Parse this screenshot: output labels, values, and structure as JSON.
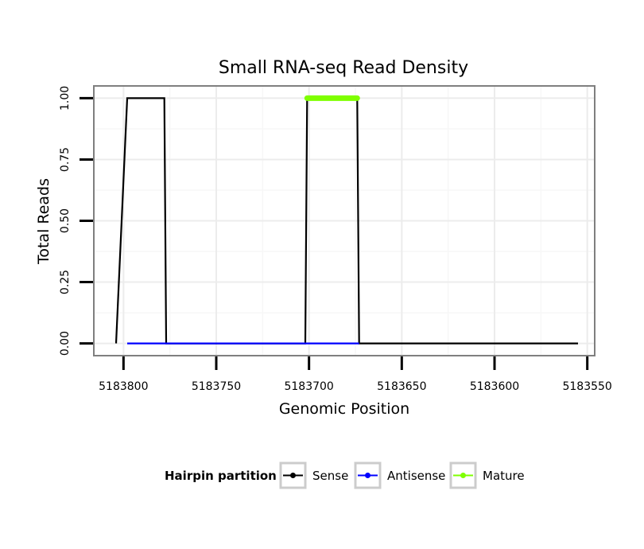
{
  "chart_data": {
    "type": "line",
    "title": "Small RNA-seq Read Density",
    "xlabel": "Genomic Position",
    "ylabel": "Total Reads",
    "x_reversed": true,
    "xlim": [
      5183816,
      5183546
    ],
    "ylim": [
      -0.05,
      1.05
    ],
    "x_ticks": [
      5183800,
      5183750,
      5183700,
      5183650,
      5183600,
      5183550
    ],
    "x_tick_labels": [
      "5183800",
      "5183750",
      "5183700",
      "5183650",
      "5183600",
      "5183550"
    ],
    "y_ticks": [
      0,
      0.25,
      0.5,
      0.75,
      1
    ],
    "y_tick_labels": [
      "0.00",
      "0.25",
      "0.50",
      "0.75",
      "1.00"
    ],
    "grid": true,
    "legend": {
      "title": "Hairpin partition",
      "position": "bottom",
      "entries": [
        {
          "name": "Sense",
          "color": "#000000"
        },
        {
          "name": "Antisense",
          "color": "#0000ff"
        },
        {
          "name": "Mature",
          "color": "#7fff00"
        }
      ]
    },
    "series": [
      {
        "name": "Sense",
        "color": "#000000",
        "x": [
          5183804,
          5183798,
          5183778,
          5183777,
          5183702,
          5183701,
          5183674,
          5183673,
          5183555
        ],
        "y": [
          0,
          1,
          1,
          0,
          0,
          1,
          1,
          0,
          0
        ]
      },
      {
        "name": "Antisense",
        "color": "#0000ff",
        "x": [
          5183798,
          5183777,
          5183701,
          5183673
        ],
        "y": [
          0,
          0,
          0,
          0
        ]
      },
      {
        "name": "Mature",
        "color": "#7fff00",
        "x": [
          5183701,
          5183674
        ],
        "y": [
          1,
          1
        ]
      }
    ]
  }
}
